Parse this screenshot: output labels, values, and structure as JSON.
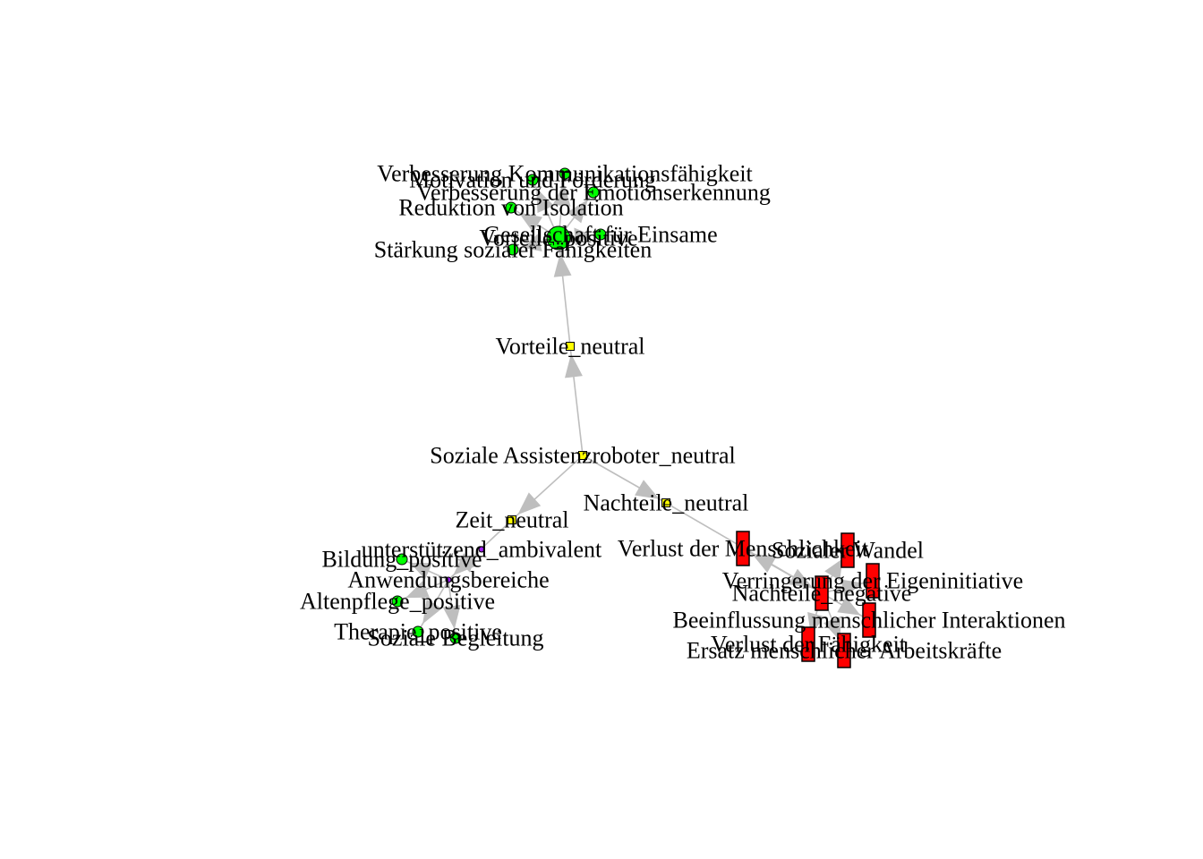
{
  "colors": {
    "edge": "#bebebe",
    "positive": "#00ff00",
    "negative": "#ff0000",
    "neutral": "#ffff00",
    "ambivalent": "#a020f0",
    "outline": "#000000"
  },
  "nodes": [
    {
      "id": "soziale-assistenzroboter-neutral",
      "label": "Soziale Assistenzroboter_neutral",
      "category": "neutral",
      "shape": "square"
    },
    {
      "id": "vorteile-neutral",
      "label": "Vorteile_neutral",
      "category": "neutral",
      "shape": "square"
    },
    {
      "id": "nachteile-neutral",
      "label": "Nachteile_neutral",
      "category": "neutral",
      "shape": "square"
    },
    {
      "id": "zeit-neutral",
      "label": "Zeit_neutral",
      "category": "neutral",
      "shape": "square"
    },
    {
      "id": "vorteile-positive",
      "label": "Vorteile_positive",
      "category": "positive",
      "shape": "circle"
    },
    {
      "id": "verbesserung-kommunikationsfaehigkeit",
      "label": "Verbesserung Kommunikationsfähigkeit",
      "category": "positive",
      "shape": "circle"
    },
    {
      "id": "motivation-und-foerderung",
      "label": "Motivation und Förderung",
      "category": "positive",
      "shape": "circle"
    },
    {
      "id": "verbesserung-emotionserkennung",
      "label": "Verbesserung der Emotionserkennung",
      "category": "positive",
      "shape": "circle"
    },
    {
      "id": "reduktion-von-isolation",
      "label": "Reduktion von Isolation",
      "category": "positive",
      "shape": "circle"
    },
    {
      "id": "gesellschaft-fuer-einsame",
      "label": "Gesellschaft für Einsame",
      "category": "positive",
      "shape": "circle"
    },
    {
      "id": "staerkung-sozialer-faehigkeiten",
      "label": "Stärkung sozialer Fähigkeiten",
      "category": "positive",
      "shape": "circle"
    },
    {
      "id": "unterstuetzend-ambivalent",
      "label": "unterstützend_ambivalent",
      "category": "ambivalent",
      "shape": "circle"
    },
    {
      "id": "anwendungsbereiche",
      "label": "Anwendungsbereiche",
      "category": "ambivalent",
      "shape": "circle"
    },
    {
      "id": "bildung-positive",
      "label": "Bildung_positive",
      "category": "positive",
      "shape": "circle"
    },
    {
      "id": "altenpflege-positive",
      "label": "Altenpflege_positive",
      "category": "positive",
      "shape": "circle"
    },
    {
      "id": "therapie-positive",
      "label": "Therapie_positive",
      "category": "positive",
      "shape": "circle"
    },
    {
      "id": "soziale-begleitung",
      "label": "Soziale Begleitung",
      "category": "positive",
      "shape": "circle"
    },
    {
      "id": "nachteile-negative",
      "label": "Nachteile_negative",
      "category": "negative",
      "shape": "rect"
    },
    {
      "id": "verlust-der-menschlichkeit",
      "label": "Verlust der Menschlichkeit",
      "category": "negative",
      "shape": "rect"
    },
    {
      "id": "sozialer-wandel",
      "label": "Sozialer Wandel",
      "category": "negative",
      "shape": "rect"
    },
    {
      "id": "verringerung-eigeninitiative",
      "label": "Verringerung der Eigeninitiative",
      "category": "negative",
      "shape": "rect"
    },
    {
      "id": "beeinflussung-interaktionen",
      "label": "Beeinflussung menschlicher Interaktionen",
      "category": "negative",
      "shape": "rect"
    },
    {
      "id": "verlust-der-faehigkeit",
      "label": "Verlust der Fähigkeit",
      "category": "negative",
      "shape": "rect"
    },
    {
      "id": "ersatz-arbeitskraefte",
      "label": "Ersatz menschlicher Arbeitskräfte",
      "category": "negative",
      "shape": "rect"
    }
  ],
  "edges": [
    {
      "from": "soziale-assistenzroboter-neutral",
      "to": "vorteile-neutral"
    },
    {
      "from": "soziale-assistenzroboter-neutral",
      "to": "nachteile-neutral"
    },
    {
      "from": "soziale-assistenzroboter-neutral",
      "to": "zeit-neutral"
    },
    {
      "from": "vorteile-neutral",
      "to": "vorteile-positive"
    },
    {
      "from": "vorteile-positive",
      "to": "verbesserung-kommunikationsfaehigkeit"
    },
    {
      "from": "vorteile-positive",
      "to": "motivation-und-foerderung"
    },
    {
      "from": "vorteile-positive",
      "to": "verbesserung-emotionserkennung"
    },
    {
      "from": "vorteile-positive",
      "to": "reduktion-von-isolation"
    },
    {
      "from": "vorteile-positive",
      "to": "gesellschaft-fuer-einsame"
    },
    {
      "from": "vorteile-positive",
      "to": "staerkung-sozialer-faehigkeiten"
    },
    {
      "from": "zeit-neutral",
      "to": "anwendungsbereiche"
    },
    {
      "from": "anwendungsbereiche",
      "to": "unterstuetzend-ambivalent"
    },
    {
      "from": "anwendungsbereiche",
      "to": "bildung-positive"
    },
    {
      "from": "anwendungsbereiche",
      "to": "altenpflege-positive"
    },
    {
      "from": "anwendungsbereiche",
      "to": "therapie-positive"
    },
    {
      "from": "anwendungsbereiche",
      "to": "soziale-begleitung"
    },
    {
      "from": "nachteile-neutral",
      "to": "nachteile-negative"
    },
    {
      "from": "nachteile-negative",
      "to": "verlust-der-menschlichkeit"
    },
    {
      "from": "nachteile-negative",
      "to": "sozialer-wandel"
    },
    {
      "from": "nachteile-negative",
      "to": "verringerung-eigeninitiative"
    },
    {
      "from": "nachteile-negative",
      "to": "beeinflussung-interaktionen"
    },
    {
      "from": "nachteile-negative",
      "to": "verlust-der-faehigkeit"
    },
    {
      "from": "nachteile-negative",
      "to": "ersatz-arbeitskraefte"
    }
  ]
}
